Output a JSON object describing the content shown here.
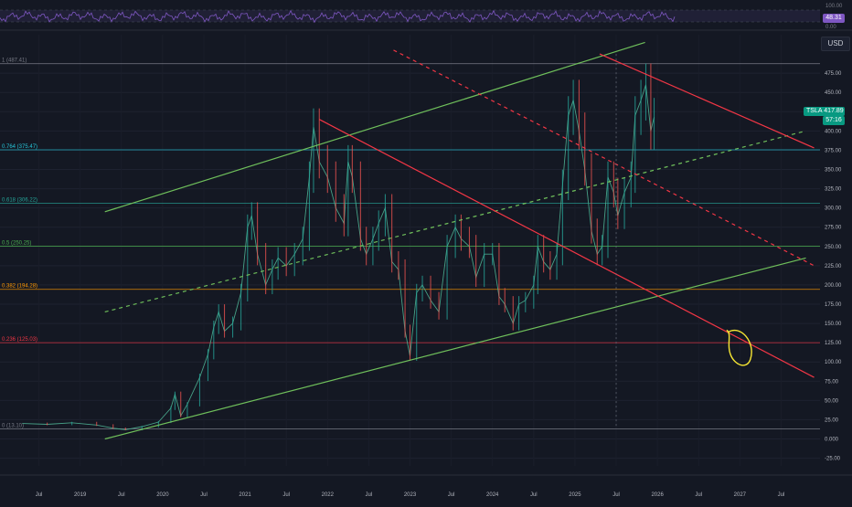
{
  "symbol": "TSLA",
  "currency": "USD",
  "last_price": "417.89",
  "countdown": "57:16",
  "rsi": {
    "value_label": "48.31",
    "scale_labels": [
      "100.00",
      "0.00"
    ]
  },
  "chart_data": {
    "type": "line",
    "title": "",
    "x_ticks": [
      "Jul",
      "2019",
      "Jul",
      "2020",
      "Jul",
      "2021",
      "Jul",
      "2022",
      "Jul",
      "2023",
      "Jul",
      "2024",
      "Jul",
      "2025",
      "Jul",
      "2026",
      "Jul",
      "2027",
      "Jul"
    ],
    "y_ticks": [
      475,
      450,
      425,
      400,
      375,
      350,
      325,
      300,
      275,
      250,
      225,
      200,
      175,
      150,
      125,
      100,
      75,
      50,
      25,
      0,
      -25
    ],
    "y_tick_labels": [
      "475.00",
      "450.00",
      "425.00",
      "400.00",
      "375.00",
      "350.00",
      "325.00",
      "300.00",
      "275.00",
      "250.00",
      "225.00",
      "200.00",
      "175.00",
      "150.00",
      "125.00",
      "100.00",
      "75.00",
      "50.00",
      "25.00",
      "0.000",
      "-25.00"
    ],
    "ylim": [
      -35,
      525
    ],
    "xlim": [
      2018.25,
      2027.75
    ],
    "fib_levels": [
      {
        "label": "1 (487.41)",
        "price": 487.41,
        "color": "#787b86"
      },
      {
        "label": "0.764 (375.47)",
        "price": 375.47,
        "color": "#26c6da"
      },
      {
        "label": "0.618 (306.22)",
        "price": 306.22,
        "color": "#26a69a"
      },
      {
        "label": "0.5 (250.25)",
        "price": 250.25,
        "color": "#4caf50"
      },
      {
        "label": "0.382 (194.28)",
        "price": 194.28,
        "color": "#ff9800"
      },
      {
        "label": "0.236 (125.03)",
        "price": 125.03,
        "color": "#f23645"
      },
      {
        "label": "0 (13.10)",
        "price": 13.1,
        "color": "#787b86"
      }
    ],
    "series": [
      {
        "points": [
          [
            2018.3,
            20
          ],
          [
            2018.6,
            19
          ],
          [
            2018.9,
            21
          ],
          [
            2019.2,
            18
          ],
          [
            2019.4,
            14
          ],
          [
            2019.55,
            12
          ],
          [
            2019.75,
            16
          ],
          [
            2019.95,
            22
          ],
          [
            2020.1,
            40
          ],
          [
            2020.15,
            58
          ],
          [
            2020.22,
            30
          ],
          [
            2020.3,
            45
          ],
          [
            2020.45,
            80
          ],
          [
            2020.55,
            110
          ],
          [
            2020.62,
            145
          ],
          [
            2020.68,
            165
          ],
          [
            2020.75,
            140
          ],
          [
            2020.85,
            150
          ],
          [
            2020.95,
            190
          ],
          [
            2021.03,
            275
          ],
          [
            2021.08,
            290
          ],
          [
            2021.15,
            240
          ],
          [
            2021.25,
            200
          ],
          [
            2021.33,
            220
          ],
          [
            2021.4,
            235
          ],
          [
            2021.5,
            225
          ],
          [
            2021.6,
            240
          ],
          [
            2021.7,
            260
          ],
          [
            2021.78,
            340
          ],
          [
            2021.83,
            405
          ],
          [
            2021.9,
            360
          ],
          [
            2022.0,
            340
          ],
          [
            2022.1,
            300
          ],
          [
            2022.2,
            280
          ],
          [
            2022.25,
            360
          ],
          [
            2022.3,
            340
          ],
          [
            2022.4,
            260
          ],
          [
            2022.47,
            240
          ],
          [
            2022.55,
            260
          ],
          [
            2022.62,
            280
          ],
          [
            2022.7,
            300
          ],
          [
            2022.78,
            230
          ],
          [
            2022.86,
            220
          ],
          [
            2022.94,
            140
          ],
          [
            2023.0,
            108
          ],
          [
            2023.08,
            190
          ],
          [
            2023.15,
            200
          ],
          [
            2023.25,
            180
          ],
          [
            2023.35,
            165
          ],
          [
            2023.45,
            250
          ],
          [
            2023.55,
            275
          ],
          [
            2023.62,
            260
          ],
          [
            2023.72,
            250
          ],
          [
            2023.8,
            210
          ],
          [
            2023.9,
            240
          ],
          [
            2024.0,
            240
          ],
          [
            2024.08,
            185
          ],
          [
            2024.15,
            175
          ],
          [
            2024.25,
            150
          ],
          [
            2024.32,
            175
          ],
          [
            2024.4,
            180
          ],
          [
            2024.5,
            200
          ],
          [
            2024.55,
            250
          ],
          [
            2024.62,
            230
          ],
          [
            2024.7,
            220
          ],
          [
            2024.78,
            240
          ],
          [
            2024.85,
            330
          ],
          [
            2024.92,
            420
          ],
          [
            2024.98,
            440
          ],
          [
            2025.05,
            400
          ],
          [
            2025.12,
            350
          ],
          [
            2025.2,
            270
          ],
          [
            2025.27,
            240
          ],
          [
            2025.33,
            250
          ],
          [
            2025.4,
            340
          ],
          [
            2025.47,
            320
          ],
          [
            2025.52,
            290
          ],
          [
            2025.6,
            320
          ],
          [
            2025.68,
            340
          ],
          [
            2025.73,
            420
          ],
          [
            2025.8,
            440
          ],
          [
            2025.86,
            460
          ],
          [
            2025.92,
            400
          ],
          [
            2025.96,
            417.89
          ]
        ]
      }
    ]
  }
}
